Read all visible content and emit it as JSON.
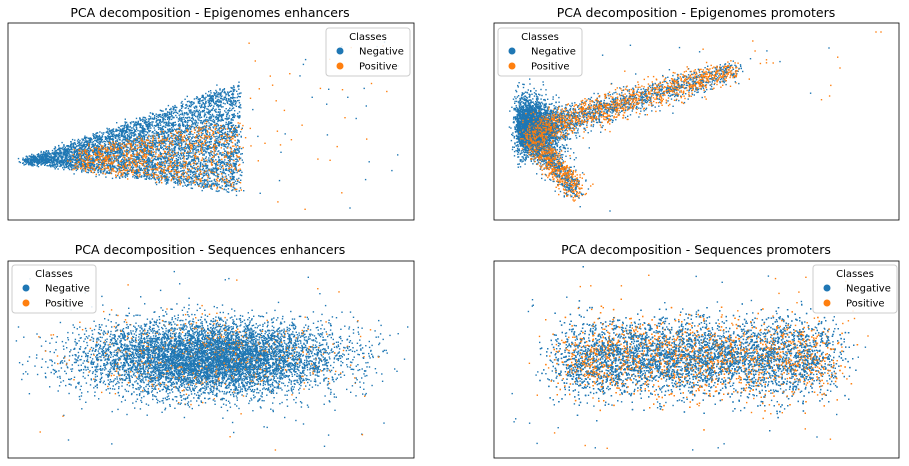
{
  "colors": {
    "negative": "#1f77b4",
    "positive": "#ff7f0e"
  },
  "chart_data": [
    {
      "type": "scatter",
      "title": "PCA decomposition - Epigenomes enhancers",
      "legend": {
        "title": "Classes",
        "placement": "top-right",
        "entries": [
          "Negative",
          "Positive"
        ]
      },
      "axes_visible": false,
      "grid": false,
      "xlim": [
        -2,
        22
      ],
      "ylim": [
        -6,
        7
      ],
      "series": [
        {
          "name": "Negative",
          "color": "#1f77b4",
          "approx_points": 9000,
          "centroid": [
            6,
            0
          ],
          "spread": "wedge opening to the right, apex near x=1"
        },
        {
          "name": "Positive",
          "color": "#ff7f0e",
          "approx_points": 1200,
          "centroid": [
            10,
            0.5
          ],
          "spread": "right side of wedge with sparse outliers"
        }
      ]
    },
    {
      "type": "scatter",
      "title": "PCA decomposition - Epigenomes promoters",
      "legend": {
        "title": "Classes",
        "placement": "top-left",
        "entries": [
          "Negative",
          "Positive"
        ]
      },
      "axes_visible": false,
      "grid": false,
      "xlim": [
        -2,
        22
      ],
      "ylim": [
        -6,
        7
      ],
      "series": [
        {
          "name": "Negative",
          "color": "#1f77b4",
          "approx_points": 6000,
          "centroid": [
            3,
            1
          ],
          "spread": "dense left cluster with downward tail"
        },
        {
          "name": "Positive",
          "color": "#ff7f0e",
          "approx_points": 3500,
          "centroid": [
            7,
            2
          ],
          "spread": "band rising to the upper right"
        }
      ]
    },
    {
      "type": "scatter",
      "title": "PCA decomposition - Sequences enhancers",
      "legend": {
        "title": "Classes",
        "placement": "top-left",
        "entries": [
          "Negative",
          "Positive"
        ]
      },
      "axes_visible": false,
      "grid": false,
      "xlim": [
        -10,
        10
      ],
      "ylim": [
        -5,
        5
      ],
      "series": [
        {
          "name": "Negative",
          "color": "#1f77b4",
          "approx_points": 14000,
          "centroid": [
            0,
            0
          ],
          "spread": "horizontal elliptical cloud"
        },
        {
          "name": "Positive",
          "color": "#ff7f0e",
          "approx_points": 800,
          "centroid": [
            0,
            0
          ],
          "spread": "scattered within cloud"
        }
      ]
    },
    {
      "type": "scatter",
      "title": "PCA decomposition - Sequences promoters",
      "legend": {
        "title": "Classes",
        "placement": "top-right",
        "entries": [
          "Negative",
          "Positive"
        ]
      },
      "axes_visible": false,
      "grid": false,
      "xlim": [
        -10,
        10
      ],
      "ylim": [
        -5,
        5
      ],
      "series": [
        {
          "name": "Negative",
          "color": "#1f77b4",
          "approx_points": 12000,
          "centroid": [
            0,
            0
          ],
          "spread": "horizontal rounded-rectangle cloud"
        },
        {
          "name": "Positive",
          "color": "#ff7f0e",
          "approx_points": 2500,
          "centroid": [
            0,
            0
          ],
          "spread": "mixed throughout cloud"
        }
      ]
    }
  ]
}
